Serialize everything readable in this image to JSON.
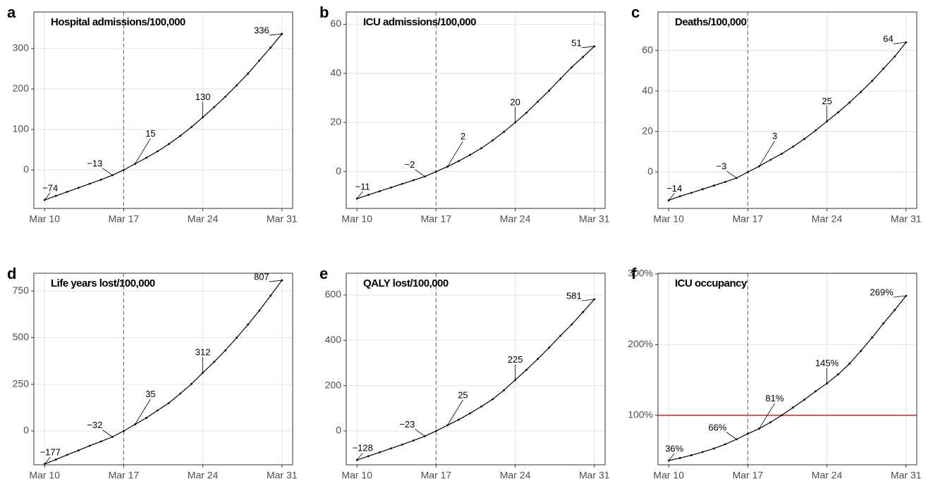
{
  "chart_data": [
    {
      "type": "line",
      "panel": "a",
      "title": "Hospital admissions/100,000",
      "x": [
        10,
        11,
        12,
        13,
        14,
        15,
        16,
        17,
        18,
        19,
        20,
        21,
        22,
        23,
        24,
        25,
        26,
        27,
        28,
        29,
        30,
        31
      ],
      "values": [
        -74,
        -64,
        -54,
        -44,
        -34,
        -24,
        -13,
        0,
        15,
        30,
        46,
        64,
        84,
        106,
        130,
        155,
        181,
        209,
        238,
        270,
        302,
        336
      ],
      "value_labels": [
        "−74",
        null,
        null,
        null,
        null,
        null,
        "−13",
        null,
        "15",
        null,
        null,
        null,
        null,
        null,
        "130",
        null,
        null,
        null,
        null,
        null,
        null,
        "336"
      ],
      "color": "#000000",
      "xlim": [
        9.05,
        31.95
      ],
      "xticks": [
        {
          "value": 10,
          "label": "Mar 10"
        },
        {
          "value": 17,
          "label": "Mar 17"
        },
        {
          "value": 24,
          "label": "Mar 24"
        },
        {
          "value": 31,
          "label": "Mar 31"
        }
      ],
      "ylim": [
        -95,
        390
      ],
      "yticks": [
        0,
        100,
        200,
        300
      ],
      "vline": 17,
      "grid": true
    },
    {
      "type": "line",
      "panel": "b",
      "title": "ICU admissions/100,000",
      "x": [
        10,
        11,
        12,
        13,
        14,
        15,
        16,
        17,
        18,
        19,
        20,
        21,
        22,
        23,
        24,
        25,
        26,
        27,
        28,
        29,
        30,
        31
      ],
      "values": [
        -11,
        -9.5,
        -8,
        -6.5,
        -5,
        -3.5,
        -2,
        0,
        2,
        4.3,
        6.8,
        9.5,
        12.7,
        16.2,
        20,
        24,
        28.5,
        33,
        37.8,
        42.5,
        46.7,
        51
      ],
      "value_labels": [
        "−11",
        null,
        null,
        null,
        null,
        null,
        "−2",
        null,
        "2",
        null,
        null,
        null,
        null,
        null,
        "20",
        null,
        null,
        null,
        null,
        null,
        null,
        "51"
      ],
      "color": "#000000",
      "xlim": [
        9.05,
        31.95
      ],
      "xticks": [
        {
          "value": 10,
          "label": "Mar 10"
        },
        {
          "value": 17,
          "label": "Mar 17"
        },
        {
          "value": 24,
          "label": "Mar 24"
        },
        {
          "value": 31,
          "label": "Mar 31"
        }
      ],
      "ylim": [
        -15,
        65
      ],
      "yticks": [
        0,
        20,
        40,
        60
      ],
      "vline": 17,
      "grid": true
    },
    {
      "type": "line",
      "panel": "c",
      "title": "Deaths/100,000",
      "x": [
        10,
        11,
        12,
        13,
        14,
        15,
        16,
        17,
        18,
        19,
        20,
        21,
        22,
        23,
        24,
        25,
        26,
        27,
        28,
        29,
        30,
        31
      ],
      "values": [
        -14,
        -12,
        -10.3,
        -8.5,
        -6.7,
        -4.9,
        -3,
        0,
        2.8,
        6,
        9,
        12.5,
        16.3,
        20.5,
        25,
        29.5,
        34.3,
        39.5,
        45,
        51,
        57,
        64
      ],
      "value_labels": [
        "−14",
        null,
        null,
        null,
        null,
        null,
        "−3",
        null,
        "3",
        null,
        null,
        null,
        null,
        null,
        "25",
        null,
        null,
        null,
        null,
        null,
        null,
        "64"
      ],
      "color": "#000000",
      "xlim": [
        9.05,
        31.95
      ],
      "xticks": [
        {
          "value": 10,
          "label": "Mar 10"
        },
        {
          "value": 17,
          "label": "Mar 17"
        },
        {
          "value": 24,
          "label": "Mar 24"
        },
        {
          "value": 31,
          "label": "Mar 31"
        }
      ],
      "ylim": [
        -18,
        79
      ],
      "yticks": [
        0,
        20,
        40,
        60
      ],
      "vline": 17,
      "grid": true
    },
    {
      "type": "line",
      "panel": "d",
      "title": "Life years lost/100,000",
      "x": [
        10,
        11,
        12,
        13,
        14,
        15,
        16,
        17,
        18,
        19,
        20,
        21,
        22,
        23,
        24,
        25,
        26,
        27,
        28,
        29,
        30,
        31
      ],
      "values": [
        -177,
        -153,
        -128,
        -104,
        -79,
        -56,
        -32,
        0,
        35,
        70,
        110,
        150,
        200,
        252,
        312,
        370,
        432,
        500,
        570,
        645,
        725,
        807
      ],
      "value_labels": [
        "−177",
        null,
        null,
        null,
        null,
        null,
        "−32",
        null,
        "35",
        null,
        null,
        null,
        null,
        null,
        "312",
        null,
        null,
        null,
        null,
        null,
        null,
        "807"
      ],
      "color": "#000000",
      "xlim": [
        9.05,
        31.95
      ],
      "xticks": [
        {
          "value": 10,
          "label": "Mar 10"
        },
        {
          "value": 17,
          "label": "Mar 17"
        },
        {
          "value": 24,
          "label": "Mar 24"
        },
        {
          "value": 31,
          "label": "Mar 31"
        }
      ],
      "ylim": [
        -181,
        845
      ],
      "yticks": [
        0,
        250,
        500,
        750
      ],
      "vline": 17,
      "grid": true
    },
    {
      "type": "line",
      "panel": "e",
      "title": "QALY lost/100,000",
      "x": [
        10,
        11,
        12,
        13,
        14,
        15,
        16,
        17,
        18,
        19,
        20,
        21,
        22,
        23,
        24,
        25,
        26,
        27,
        28,
        29,
        30,
        31
      ],
      "values": [
        -128,
        -111,
        -94,
        -77,
        -60,
        -42,
        -23,
        0,
        25,
        50,
        78,
        108,
        140,
        180,
        225,
        270,
        318,
        368,
        420,
        470,
        525,
        581
      ],
      "value_labels": [
        "−128",
        null,
        null,
        null,
        null,
        null,
        "−23",
        null,
        "25",
        null,
        null,
        null,
        null,
        null,
        "225",
        null,
        null,
        null,
        null,
        null,
        null,
        "581"
      ],
      "color": "#000000",
      "xlim": [
        9.05,
        31.95
      ],
      "xticks": [
        {
          "value": 10,
          "label": "Mar 10"
        },
        {
          "value": 17,
          "label": "Mar 17"
        },
        {
          "value": 24,
          "label": "Mar 24"
        },
        {
          "value": 31,
          "label": "Mar 31"
        }
      ],
      "ylim": [
        -149,
        696
      ],
      "yticks": [
        0,
        200,
        400,
        600
      ],
      "vline": 17,
      "grid": true
    },
    {
      "type": "line",
      "panel": "f",
      "title": "ICU occupancy",
      "x": [
        10,
        11,
        12,
        13,
        14,
        15,
        16,
        17,
        18,
        19,
        20,
        21,
        22,
        23,
        24,
        25,
        26,
        27,
        28,
        29,
        30,
        31
      ],
      "values": [
        36,
        39.5,
        43.5,
        48,
        53,
        59,
        66,
        74,
        81,
        90,
        100,
        111,
        122,
        134,
        145,
        158,
        173,
        191,
        210,
        230,
        249,
        269
      ],
      "value_labels": [
        "36%",
        null,
        null,
        null,
        null,
        null,
        "66%",
        null,
        "81%",
        null,
        null,
        null,
        null,
        null,
        "145%",
        null,
        null,
        null,
        null,
        null,
        null,
        "269%"
      ],
      "color": "#000000",
      "xlim": [
        9.05,
        31.95
      ],
      "xticks": [
        {
          "value": 10,
          "label": "Mar 10"
        },
        {
          "value": 17,
          "label": "Mar 17"
        },
        {
          "value": 24,
          "label": "Mar 24"
        },
        {
          "value": 31,
          "label": "Mar 31"
        }
      ],
      "ylim": [
        30,
        301
      ],
      "yticks": [
        {
          "value": 100,
          "label": "100%"
        },
        {
          "value": 200,
          "label": "200%"
        },
        {
          "value": 300,
          "label": "300%"
        }
      ],
      "vline": 17,
      "hline": 100,
      "hline_color": "#e8211a",
      "grid": true
    }
  ]
}
